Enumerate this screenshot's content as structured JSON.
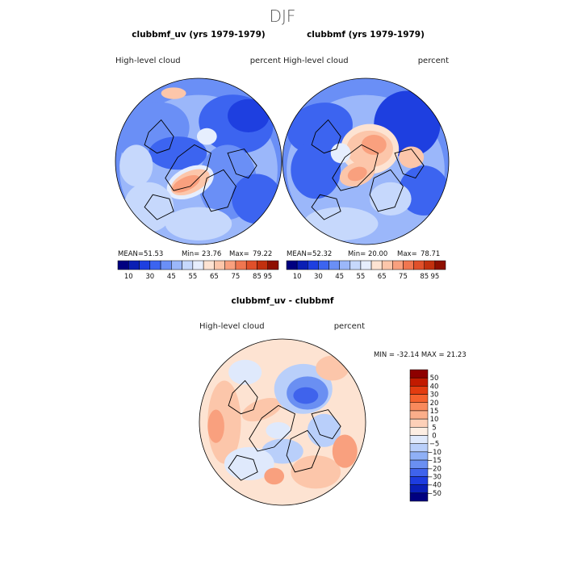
{
  "chart_data": [
    {
      "type": "heatmap",
      "projection": "north-polar-stereographic",
      "season": "DJF",
      "title": "clubbmf_uv (yrs 1979-1979)",
      "left_label": "High-level cloud",
      "right_label": "percent",
      "stats": {
        "mean": "51.53",
        "min": "23.76",
        "max": "79.22"
      },
      "stats_labels": {
        "mean": "MEAN=",
        "min": "Min=",
        "max": "Max="
      },
      "colorbar": {
        "levels": [
          "10",
          "30",
          "45",
          "55",
          "65",
          "75",
          "85",
          "95"
        ],
        "colors": [
          "#000080",
          "#0a1fb4",
          "#1e3fe0",
          "#3c64f0",
          "#6a8ff6",
          "#9bb7fa",
          "#c6d8fc",
          "#e6eefe",
          "#fde3d2",
          "#fcc6aa",
          "#f9a07e",
          "#f07650",
          "#e0502a",
          "#c2300e",
          "#8e0f00"
        ]
      }
    },
    {
      "type": "heatmap",
      "projection": "north-polar-stereographic",
      "season": "DJF",
      "title": "clubbmf (yrs 1979-1979)",
      "left_label": "High-level cloud",
      "right_label": "percent",
      "stats": {
        "mean": "52.32",
        "min": "20.00",
        "max": "78.71"
      },
      "stats_labels": {
        "mean": "MEAN=",
        "min": "Min=",
        "max": "Max="
      },
      "colorbar": {
        "levels": [
          "10",
          "30",
          "45",
          "55",
          "65",
          "75",
          "85",
          "95"
        ],
        "colors": [
          "#000080",
          "#0a1fb4",
          "#1e3fe0",
          "#3c64f0",
          "#6a8ff6",
          "#9bb7fa",
          "#c6d8fc",
          "#e6eefe",
          "#fde3d2",
          "#fcc6aa",
          "#f9a07e",
          "#f07650",
          "#e0502a",
          "#c2300e",
          "#8e0f00"
        ]
      }
    },
    {
      "type": "heatmap",
      "projection": "north-polar-stereographic",
      "season": "DJF",
      "title": "clubbmf_uv - clubbmf",
      "left_label": "High-level cloud",
      "right_label": "percent",
      "stats_text": "MIN = -32.14 MAX = 21.23",
      "colorbar": {
        "levels": [
          "50",
          "40",
          "30",
          "20",
          "15",
          "10",
          "5",
          "0",
          "−5",
          "−10",
          "−15",
          "−20",
          "−30",
          "−40",
          "−50"
        ],
        "colors": [
          "#8e0000",
          "#c21a00",
          "#e33c10",
          "#f5622e",
          "#f98a5c",
          "#fbae8a",
          "#fdd0b8",
          "#fdeee3",
          "#dfe9fc",
          "#b9cffa",
          "#8fb0f6",
          "#6a8ff2",
          "#3f63ec",
          "#1d3ce0",
          "#0a1fb8",
          "#000080"
        ]
      }
    }
  ],
  "page_title": "DJF"
}
